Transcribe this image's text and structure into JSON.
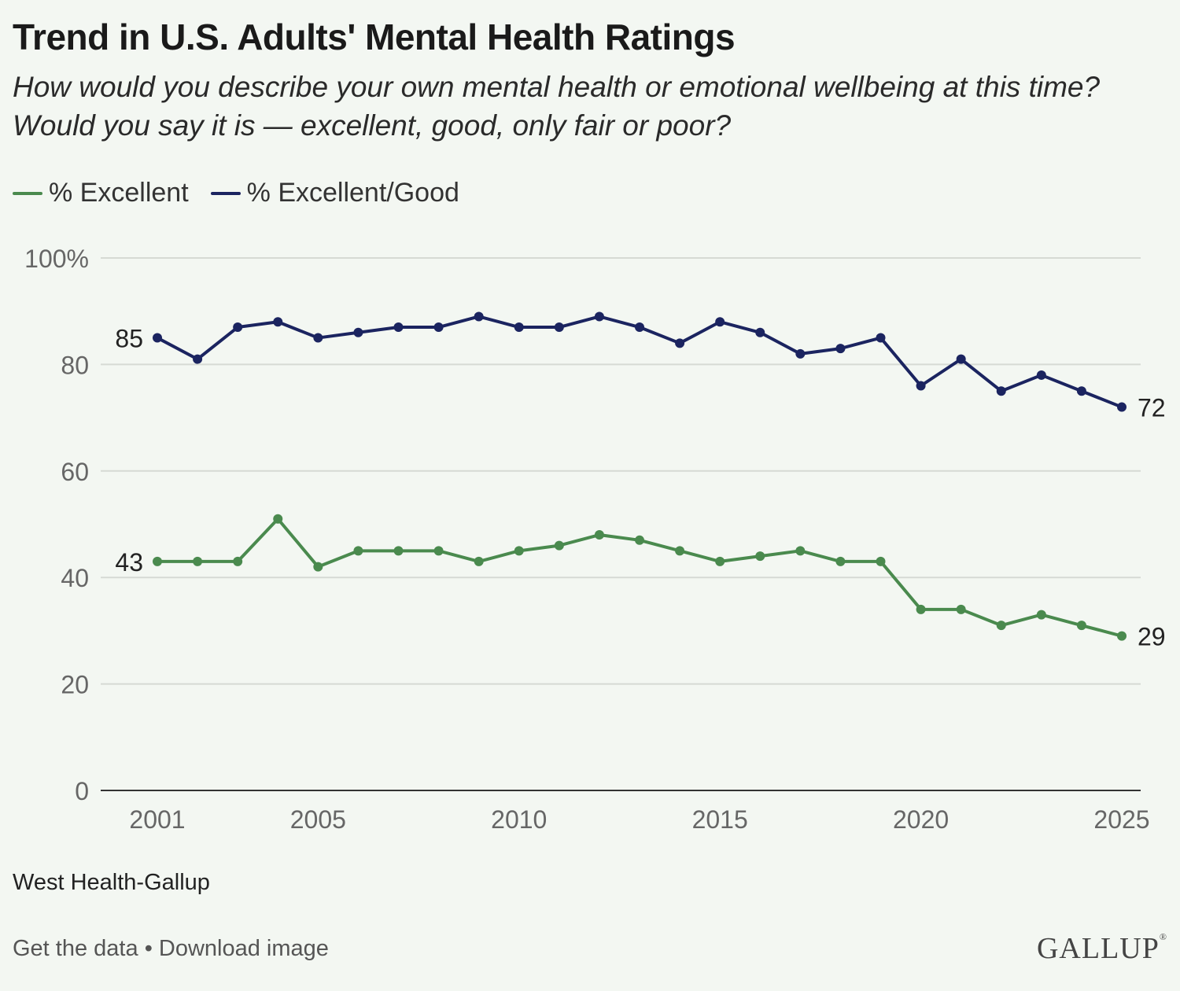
{
  "header": {
    "title": "Trend in U.S. Adults' Mental Health Ratings",
    "subtitle": "How would you describe your own mental health or emotional wellbeing at this time? Would you say it is — excellent, good, only fair or poor?"
  },
  "footer": {
    "source": "West Health-Gallup",
    "get_data_label": "Get the data",
    "separator": "•",
    "download_label": "Download image",
    "logo_text": "GALLUP"
  },
  "chart_data": {
    "type": "line",
    "x": [
      2001,
      2002,
      2003,
      2004,
      2005,
      2006,
      2007,
      2008,
      2009,
      2010,
      2011,
      2012,
      2013,
      2014,
      2015,
      2016,
      2017,
      2018,
      2019,
      2020,
      2021,
      2022,
      2023,
      2024,
      2025
    ],
    "series": [
      {
        "name": "% Excellent",
        "color": "#4a8a4e",
        "values": [
          43,
          43,
          43,
          51,
          42,
          45,
          45,
          45,
          43,
          45,
          46,
          48,
          47,
          45,
          43,
          44,
          45,
          43,
          43,
          34,
          34,
          31,
          33,
          31,
          29
        ],
        "start_label": "43",
        "end_label": "29"
      },
      {
        "name": "% Excellent/Good",
        "color": "#1b2460",
        "values": [
          85,
          81,
          87,
          88,
          85,
          86,
          87,
          87,
          89,
          87,
          87,
          89,
          87,
          84,
          88,
          86,
          82,
          83,
          85,
          76,
          81,
          75,
          78,
          75,
          72
        ],
        "start_label": "85",
        "end_label": "72"
      }
    ],
    "xticks": [
      2001,
      2005,
      2010,
      2015,
      2020,
      2025
    ],
    "yticks": [
      0,
      20,
      40,
      60,
      80,
      100
    ],
    "ytick_labels": [
      "0",
      "20",
      "40",
      "60",
      "80",
      "100%"
    ],
    "xlim": [
      2001,
      2025
    ],
    "ylim": [
      0,
      100
    ],
    "grid": true,
    "legend": "top-left"
  }
}
